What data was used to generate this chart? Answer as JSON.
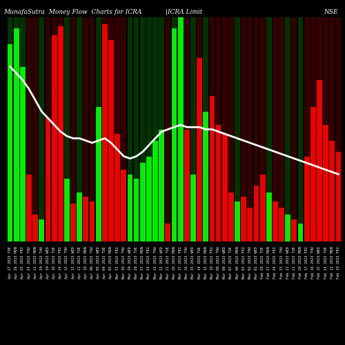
{
  "title": "MunafaSutra  Money Flow  Charts for ICRA",
  "title2": "|ICRA Limit",
  "title_right": "NSE",
  "bg_color": "#000000",
  "bar_color_up": "#00ee00",
  "bar_color_down": "#ee0000",
  "line_color": "#ffffff",
  "dark_bar_up": "#003300",
  "dark_bar_down": "#330000",
  "bars": [
    {
      "val": 0.88,
      "color": "up"
    },
    {
      "val": 0.95,
      "color": "up"
    },
    {
      "val": 0.78,
      "color": "up"
    },
    {
      "val": 0.3,
      "color": "down"
    },
    {
      "val": 0.12,
      "color": "down"
    },
    {
      "val": 0.1,
      "color": "up"
    },
    {
      "val": 0.55,
      "color": "down"
    },
    {
      "val": 0.92,
      "color": "down"
    },
    {
      "val": 0.96,
      "color": "down"
    },
    {
      "val": 0.28,
      "color": "up"
    },
    {
      "val": 0.17,
      "color": "down"
    },
    {
      "val": 0.22,
      "color": "up"
    },
    {
      "val": 0.2,
      "color": "down"
    },
    {
      "val": 0.18,
      "color": "down"
    },
    {
      "val": 0.6,
      "color": "up"
    },
    {
      "val": 0.97,
      "color": "down"
    },
    {
      "val": 0.9,
      "color": "down"
    },
    {
      "val": 0.48,
      "color": "down"
    },
    {
      "val": 0.32,
      "color": "down"
    },
    {
      "val": 0.3,
      "color": "up"
    },
    {
      "val": 0.28,
      "color": "up"
    },
    {
      "val": 0.35,
      "color": "up"
    },
    {
      "val": 0.38,
      "color": "up"
    },
    {
      "val": 0.45,
      "color": "up"
    },
    {
      "val": 0.5,
      "color": "up"
    },
    {
      "val": 0.08,
      "color": "down"
    },
    {
      "val": 0.95,
      "color": "up"
    },
    {
      "val": 1.0,
      "color": "up"
    },
    {
      "val": 0.5,
      "color": "down"
    },
    {
      "val": 0.3,
      "color": "up"
    },
    {
      "val": 0.82,
      "color": "down"
    },
    {
      "val": 0.58,
      "color": "up"
    },
    {
      "val": 0.65,
      "color": "down"
    },
    {
      "val": 0.52,
      "color": "down"
    },
    {
      "val": 0.48,
      "color": "down"
    },
    {
      "val": 0.22,
      "color": "down"
    },
    {
      "val": 0.18,
      "color": "up"
    },
    {
      "val": 0.2,
      "color": "down"
    },
    {
      "val": 0.15,
      "color": "down"
    },
    {
      "val": 0.25,
      "color": "down"
    },
    {
      "val": 0.3,
      "color": "down"
    },
    {
      "val": 0.22,
      "color": "up"
    },
    {
      "val": 0.18,
      "color": "down"
    },
    {
      "val": 0.15,
      "color": "down"
    },
    {
      "val": 0.12,
      "color": "up"
    },
    {
      "val": 0.1,
      "color": "down"
    },
    {
      "val": 0.08,
      "color": "up"
    },
    {
      "val": 0.38,
      "color": "down"
    },
    {
      "val": 0.6,
      "color": "down"
    },
    {
      "val": 0.72,
      "color": "down"
    },
    {
      "val": 0.52,
      "color": "down"
    },
    {
      "val": 0.45,
      "color": "down"
    },
    {
      "val": 0.4,
      "color": "down"
    }
  ],
  "line_values": [
    0.78,
    0.75,
    0.72,
    0.68,
    0.63,
    0.58,
    0.55,
    0.52,
    0.49,
    0.47,
    0.46,
    0.46,
    0.45,
    0.44,
    0.45,
    0.46,
    0.44,
    0.41,
    0.38,
    0.37,
    0.38,
    0.4,
    0.43,
    0.46,
    0.49,
    0.5,
    0.51,
    0.52,
    0.51,
    0.51,
    0.51,
    0.5,
    0.5,
    0.49,
    0.48,
    0.47,
    0.46,
    0.45,
    0.44,
    0.43,
    0.42,
    0.41,
    0.4,
    0.39,
    0.38,
    0.37,
    0.36,
    0.35,
    0.34,
    0.33,
    0.32,
    0.31,
    0.3
  ],
  "tick_labels": [
    "Apr 27 2023 TUE",
    "Apr 26 2023 MON",
    "Apr 25 2023 FRI",
    "Apr 24 2023 THU",
    "Apr 21 2023 MON",
    "Apr 20 2023 THU",
    "Apr 19 2023 WED",
    "Apr 18 2023 TUE",
    "Apr 14 2023 FRI",
    "Apr 13 2023 THU",
    "Apr 12 2023 WED",
    "Apr 11 2023 TUE",
    "Apr 10 2023 MON",
    "Apr 06 2023 THU",
    "Apr 05 2023 WED",
    "Apr 04 2023 TUE",
    "Apr 03 2023 MON",
    "Mar 31 2023 FRI",
    "Mar 30 2023 THU",
    "Mar 29 2023 WED",
    "Mar 28 2023 TUE",
    "Mar 27 2023 MON",
    "Mar 24 2023 FRI",
    "Mar 23 2023 THU",
    "Mar 22 2023 WED",
    "Mar 21 2023 TUE",
    "Mar 20 2023 MON",
    "Mar 17 2023 FRI",
    "Mar 16 2023 THU",
    "Mar 15 2023 WED",
    "Mar 14 2023 TUE",
    "Mar 13 2023 MON",
    "Mar 10 2023 FRI",
    "Mar 09 2023 THU",
    "Mar 08 2023 WED",
    "Mar 07 2023 TUE",
    "Mar 06 2023 MON",
    "Mar 03 2023 FRI",
    "Mar 02 2023 THU",
    "Mar 01 2023 WED",
    "Feb 28 2023 TUE",
    "Feb 27 2023 MON",
    "Feb 24 2023 FRI",
    "Feb 23 2023 THU",
    "Feb 22 2023 WED",
    "Feb 21 2023 TUE",
    "Feb 20 2023 MON",
    "Feb 17 2023 FRI",
    "Feb 16 2023 THU",
    "Feb 15 2023 WED",
    "Feb 14 2023 TUE",
    "Feb 13 2023 MON",
    "Feb 10 2023 FRI"
  ],
  "ylim": [
    0,
    1.0
  ],
  "title_fontsize": 6.5,
  "tick_fontsize": 3.8
}
